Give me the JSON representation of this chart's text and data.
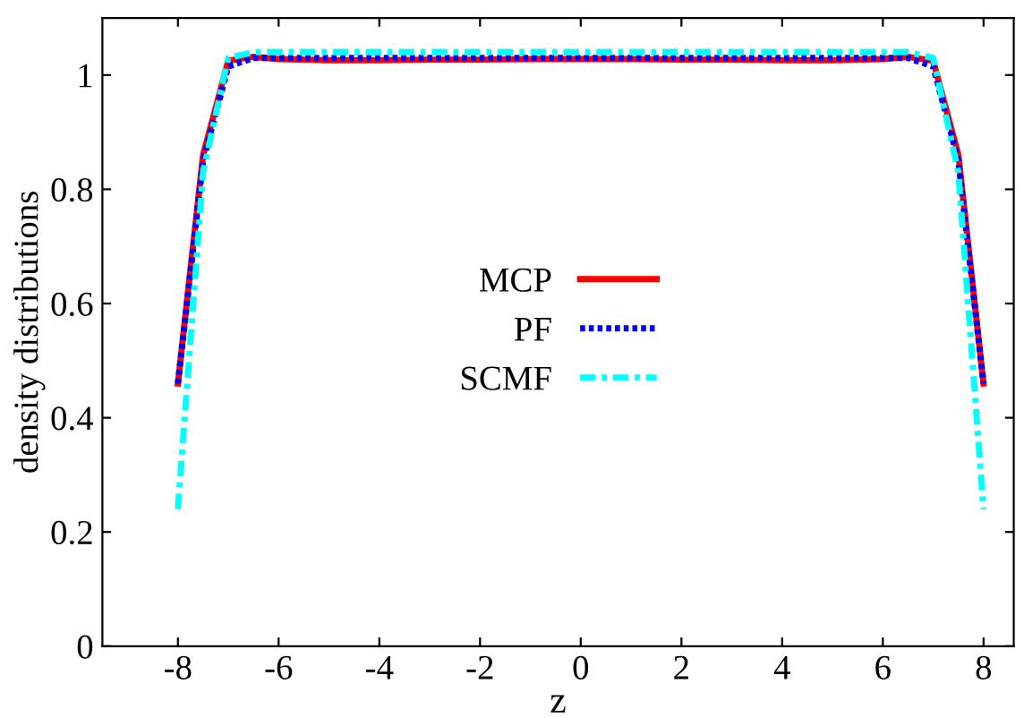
{
  "chart_data": {
    "type": "line",
    "xlabel": "z",
    "ylabel": "density distributions",
    "x": [
      -8,
      -7.5,
      -7,
      -6.5,
      -6,
      -5,
      -4,
      -3,
      -2,
      -1,
      0,
      1,
      2,
      3,
      4,
      5,
      6,
      6.5,
      7,
      7.5,
      8
    ],
    "series": [
      {
        "name": "MCP",
        "color": "#ff0000",
        "line_style": "solid",
        "values": [
          0.46,
          0.86,
          1.025,
          1.032,
          1.028,
          1.026,
          1.026,
          1.027,
          1.027,
          1.028,
          1.028,
          1.028,
          1.027,
          1.027,
          1.026,
          1.026,
          1.028,
          1.032,
          1.025,
          0.86,
          0.46
        ]
      },
      {
        "name": "PF",
        "color": "#0000ff",
        "line_style": "dotted",
        "values": [
          0.46,
          0.85,
          1.015,
          1.03,
          1.03,
          1.03,
          1.03,
          1.03,
          1.03,
          1.03,
          1.03,
          1.03,
          1.03,
          1.03,
          1.03,
          1.03,
          1.03,
          1.03,
          1.015,
          0.85,
          0.46
        ]
      },
      {
        "name": "SCMF",
        "color": "#00ffff",
        "line_style": "dashdot",
        "values": [
          0.24,
          0.83,
          1.03,
          1.04,
          1.04,
          1.04,
          1.04,
          1.04,
          1.04,
          1.04,
          1.04,
          1.04,
          1.04,
          1.04,
          1.04,
          1.04,
          1.04,
          1.04,
          1.03,
          0.83,
          0.24
        ]
      }
    ],
    "xlim": [
      -9.5,
      8.6
    ],
    "ylim": [
      0,
      1.1
    ],
    "xticks": [
      -8,
      -6,
      -4,
      -2,
      0,
      2,
      4,
      6,
      8
    ],
    "yticks": [
      0,
      0.2,
      0.4,
      0.6,
      0.8,
      1
    ],
    "legend": "center",
    "grid": false
  }
}
